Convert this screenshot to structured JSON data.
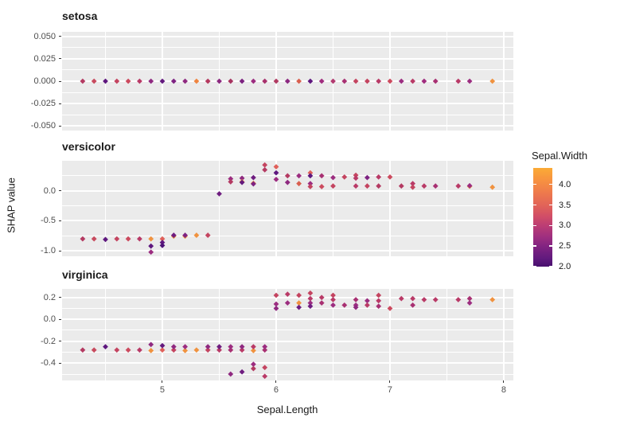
{
  "chart_data": {
    "type": "scatter",
    "title": "",
    "xlabel": "Sepal.Length",
    "ylabel": "SHAP value",
    "xlim": [
      4.119,
      8.084
    ],
    "x_major_ticks": [
      5,
      6,
      7,
      8
    ],
    "x_major_tick_labels": [
      "5",
      "6",
      "7",
      "8"
    ],
    "x_minor_ticks": [
      4.5,
      5.5,
      6.5,
      7.5
    ],
    "grid": true,
    "panel_background": "#ebebeb",
    "gridline_color": "#ffffff",
    "point_shape": "diamond",
    "legend": {
      "title": "Sepal.Width",
      "position": "right",
      "tick_labels": [
        "4.0",
        "3.5",
        "3.0",
        "2.5",
        "2.0"
      ],
      "tick_values": [
        4.0,
        3.5,
        3.0,
        2.5,
        2.0
      ],
      "range": [
        2.0,
        4.4
      ],
      "gradient_stops": [
        {
          "v": 4.4,
          "c": "#fbab35"
        },
        {
          "v": 4.1,
          "c": "#f79240"
        },
        {
          "v": 3.8,
          "c": "#ee7a4c"
        },
        {
          "v": 3.5,
          "c": "#e26458"
        },
        {
          "v": 3.2,
          "c": "#cf4c68"
        },
        {
          "v": 3.0,
          "c": "#bc3d74"
        },
        {
          "v": 2.7,
          "c": "#9c2e80"
        },
        {
          "v": 2.5,
          "c": "#822381"
        },
        {
          "v": 2.2,
          "c": "#611a7e"
        },
        {
          "v": 2.0,
          "c": "#47106e"
        }
      ]
    },
    "facets": [
      {
        "label": "setosa",
        "ylim": [
          -0.055,
          0.055
        ],
        "yticks": [
          {
            "label": "0.050",
            "v": 0.05
          },
          {
            "label": "0.025",
            "v": 0.025
          },
          {
            "label": "0.000",
            "v": 0.0
          },
          {
            "label": "-0.025",
            "v": -0.025
          },
          {
            "label": "-0.050",
            "v": -0.05
          }
        ],
        "y_minor": [
          0.0375,
          0.0125,
          -0.0125,
          -0.0375
        ],
        "points": [
          {
            "x": 4.3,
            "y": 0,
            "c": "#b43a62"
          },
          {
            "x": 4.4,
            "y": 0,
            "c": "#c84a5e"
          },
          {
            "x": 4.5,
            "y": 0,
            "c": "#5e177e"
          },
          {
            "x": 4.6,
            "y": 0,
            "c": "#c44460"
          },
          {
            "x": 4.7,
            "y": 0,
            "c": "#cc4a5e"
          },
          {
            "x": 4.8,
            "y": 0,
            "c": "#b93a67"
          },
          {
            "x": 4.9,
            "y": 0,
            "c": "#8f2980"
          },
          {
            "x": 5.0,
            "y": 0,
            "c": "#63197e"
          },
          {
            "x": 5.1,
            "y": 0,
            "c": "#7e2282"
          },
          {
            "x": 5.2,
            "y": 0,
            "c": "#8f2980"
          },
          {
            "x": 5.3,
            "y": 0,
            "c": "#ef8440"
          },
          {
            "x": 5.4,
            "y": 0,
            "c": "#b5395f"
          },
          {
            "x": 5.5,
            "y": 0,
            "c": "#8c2980"
          },
          {
            "x": 5.6,
            "y": 0,
            "c": "#a63360"
          },
          {
            "x": 5.7,
            "y": 0,
            "c": "#7c2280"
          },
          {
            "x": 5.8,
            "y": 0,
            "c": "#9c2c80"
          },
          {
            "x": 5.9,
            "y": 0,
            "c": "#a8306c"
          },
          {
            "x": 6.0,
            "y": 0,
            "c": "#b13a62"
          },
          {
            "x": 6.1,
            "y": 0,
            "c": "#8c2980"
          },
          {
            "x": 6.2,
            "y": 0,
            "c": "#d95f4f"
          },
          {
            "x": 6.3,
            "y": 0,
            "c": "#5e177e"
          },
          {
            "x": 6.4,
            "y": 0,
            "c": "#a02c7e"
          },
          {
            "x": 6.5,
            "y": 0,
            "c": "#b23a70"
          },
          {
            "x": 6.6,
            "y": 0,
            "c": "#a83072"
          },
          {
            "x": 6.7,
            "y": 0,
            "c": "#c44460"
          },
          {
            "x": 6.8,
            "y": 0,
            "c": "#c44460"
          },
          {
            "x": 6.9,
            "y": 0,
            "c": "#b93a67"
          },
          {
            "x": 7.0,
            "y": 0,
            "c": "#cc4a5e"
          },
          {
            "x": 7.1,
            "y": 0,
            "c": "#9c2d80"
          },
          {
            "x": 7.2,
            "y": 0,
            "c": "#b93a67"
          },
          {
            "x": 7.3,
            "y": 0,
            "c": "#a02c7e"
          },
          {
            "x": 7.4,
            "y": 0,
            "c": "#a83072"
          },
          {
            "x": 7.6,
            "y": 0,
            "c": "#b93a67"
          },
          {
            "x": 7.7,
            "y": 0,
            "c": "#9c2d80"
          },
          {
            "x": 7.9,
            "y": 0,
            "c": "#f0923f"
          }
        ]
      },
      {
        "label": "versicolor",
        "ylim": [
          -1.09,
          0.5
        ],
        "yticks": [
          {
            "label": "0.0",
            "v": 0.0
          },
          {
            "label": "-0.5",
            "v": -0.5
          },
          {
            "label": "-1.0",
            "v": -1.0
          }
        ],
        "y_minor": [
          0.25,
          -0.25,
          -0.75
        ],
        "points": [
          {
            "x": 4.3,
            "y": -0.8,
            "c": "#b43a62"
          },
          {
            "x": 4.4,
            "y": -0.8,
            "c": "#c84a5e"
          },
          {
            "x": 4.5,
            "y": -0.81,
            "c": "#5e177e"
          },
          {
            "x": 4.6,
            "y": -0.8,
            "c": "#c44460"
          },
          {
            "x": 4.7,
            "y": -0.8,
            "c": "#cc4a5e"
          },
          {
            "x": 4.8,
            "y": -0.8,
            "c": "#b93a67"
          },
          {
            "x": 4.9,
            "y": -0.8,
            "c": "#f0923f"
          },
          {
            "x": 4.9,
            "y": -0.92,
            "c": "#5e177e"
          },
          {
            "x": 4.9,
            "y": -1.02,
            "c": "#9c2d80"
          },
          {
            "x": 5.0,
            "y": -0.8,
            "c": "#e0605a"
          },
          {
            "x": 5.0,
            "y": -0.86,
            "c": "#5e177e"
          },
          {
            "x": 5.0,
            "y": -0.91,
            "c": "#4c1176"
          },
          {
            "x": 5.1,
            "y": -0.755,
            "c": "#f0923f"
          },
          {
            "x": 5.1,
            "y": -0.74,
            "c": "#6f1d80"
          },
          {
            "x": 5.2,
            "y": -0.755,
            "c": "#f0923f"
          },
          {
            "x": 5.2,
            "y": -0.74,
            "c": "#7e2282"
          },
          {
            "x": 5.3,
            "y": -0.74,
            "c": "#f0923f"
          },
          {
            "x": 5.4,
            "y": -0.74,
            "c": "#c44460"
          },
          {
            "x": 5.5,
            "y": -0.05,
            "c": "#6f1d80"
          },
          {
            "x": 5.6,
            "y": 0.2,
            "c": "#9c2d80"
          },
          {
            "x": 5.6,
            "y": 0.15,
            "c": "#b43a62"
          },
          {
            "x": 5.7,
            "y": 0.21,
            "c": "#8f2980"
          },
          {
            "x": 5.7,
            "y": 0.15,
            "c": "#f0923f"
          },
          {
            "x": 5.7,
            "y": 0.14,
            "c": "#63197e"
          },
          {
            "x": 5.8,
            "y": 0.22,
            "c": "#6f1d80"
          },
          {
            "x": 5.8,
            "y": 0.125,
            "c": "#f0923f"
          },
          {
            "x": 5.8,
            "y": 0.115,
            "c": "#7e2282"
          },
          {
            "x": 5.9,
            "y": 0.43,
            "c": "#c44460"
          },
          {
            "x": 5.9,
            "y": 0.35,
            "c": "#b43a62"
          },
          {
            "x": 6.0,
            "y": 0.4,
            "c": "#e0605a"
          },
          {
            "x": 6.0,
            "y": 0.3,
            "c": "#5e177e"
          },
          {
            "x": 6.0,
            "y": 0.19,
            "c": "#9c2d80"
          },
          {
            "x": 6.1,
            "y": 0.25,
            "c": "#b43a62"
          },
          {
            "x": 6.1,
            "y": 0.14,
            "c": "#8f2980"
          },
          {
            "x": 6.2,
            "y": 0.25,
            "c": "#9c2d80"
          },
          {
            "x": 6.2,
            "y": 0.12,
            "c": "#d95f4f"
          },
          {
            "x": 6.3,
            "y": 0.3,
            "c": "#e0605a"
          },
          {
            "x": 6.3,
            "y": 0.25,
            "c": "#5e177e"
          },
          {
            "x": 6.3,
            "y": 0.12,
            "c": "#9c2d80"
          },
          {
            "x": 6.3,
            "y": 0.07,
            "c": "#c44460"
          },
          {
            "x": 6.4,
            "y": 0.25,
            "c": "#a83072"
          },
          {
            "x": 6.4,
            "y": 0.07,
            "c": "#cc4a5e"
          },
          {
            "x": 6.5,
            "y": 0.22,
            "c": "#9c2d80"
          },
          {
            "x": 6.5,
            "y": 0.08,
            "c": "#c44460"
          },
          {
            "x": 6.6,
            "y": 0.23,
            "c": "#c44460"
          },
          {
            "x": 6.7,
            "y": 0.26,
            "c": "#c44460"
          },
          {
            "x": 6.7,
            "y": 0.21,
            "c": "#b93a67"
          },
          {
            "x": 6.7,
            "y": 0.08,
            "c": "#b93a67"
          },
          {
            "x": 6.8,
            "y": 0.22,
            "c": "#7e2282"
          },
          {
            "x": 6.8,
            "y": 0.08,
            "c": "#c44460"
          },
          {
            "x": 6.9,
            "y": 0.23,
            "c": "#b93a67"
          },
          {
            "x": 6.9,
            "y": 0.08,
            "c": "#b43a62"
          },
          {
            "x": 7.0,
            "y": 0.23,
            "c": "#cc4a5e"
          },
          {
            "x": 7.1,
            "y": 0.08,
            "c": "#b43a62"
          },
          {
            "x": 7.2,
            "y": 0.12,
            "c": "#b93a67"
          },
          {
            "x": 7.2,
            "y": 0.06,
            "c": "#c44460"
          },
          {
            "x": 7.3,
            "y": 0.08,
            "c": "#b93a67"
          },
          {
            "x": 7.4,
            "y": 0.08,
            "c": "#a83072"
          },
          {
            "x": 7.6,
            "y": 0.08,
            "c": "#b93a67"
          },
          {
            "x": 7.7,
            "y": 0.075,
            "c": "#f0923f"
          },
          {
            "x": 7.7,
            "y": 0.085,
            "c": "#9c2d80"
          },
          {
            "x": 7.9,
            "y": 0.06,
            "c": "#f0923f"
          }
        ]
      },
      {
        "label": "virginica",
        "ylim": [
          -0.558,
          0.278
        ],
        "yticks": [
          {
            "label": "0.2",
            "v": 0.2
          },
          {
            "label": "0.0",
            "v": 0.0
          },
          {
            "label": "-0.2",
            "v": -0.2
          },
          {
            "label": "-0.4",
            "v": -0.4
          }
        ],
        "y_minor": [
          0.1,
          -0.1,
          -0.3,
          -0.5
        ],
        "points": [
          {
            "x": 4.3,
            "y": -0.28,
            "c": "#b43a62"
          },
          {
            "x": 4.4,
            "y": -0.28,
            "c": "#c84a5e"
          },
          {
            "x": 4.5,
            "y": -0.25,
            "c": "#5e177e"
          },
          {
            "x": 4.6,
            "y": -0.28,
            "c": "#c44460"
          },
          {
            "x": 4.7,
            "y": -0.28,
            "c": "#cc4a5e"
          },
          {
            "x": 4.8,
            "y": -0.28,
            "c": "#b93a67"
          },
          {
            "x": 4.9,
            "y": -0.285,
            "c": "#f0923f"
          },
          {
            "x": 4.9,
            "y": -0.23,
            "c": "#8f2980"
          },
          {
            "x": 5.0,
            "y": -0.28,
            "c": "#e0605a"
          },
          {
            "x": 5.0,
            "y": -0.24,
            "c": "#63197e"
          },
          {
            "x": 5.1,
            "y": -0.28,
            "c": "#c44460"
          },
          {
            "x": 5.1,
            "y": -0.25,
            "c": "#8f2980"
          },
          {
            "x": 5.2,
            "y": -0.285,
            "c": "#f0923f"
          },
          {
            "x": 5.2,
            "y": -0.25,
            "c": "#9c2d80"
          },
          {
            "x": 5.3,
            "y": -0.28,
            "c": "#f0923f"
          },
          {
            "x": 5.4,
            "y": -0.28,
            "c": "#c44460"
          },
          {
            "x": 5.4,
            "y": -0.25,
            "c": "#8f2980"
          },
          {
            "x": 5.5,
            "y": -0.28,
            "c": "#b93a67"
          },
          {
            "x": 5.5,
            "y": -0.25,
            "c": "#6f1d80"
          },
          {
            "x": 5.6,
            "y": -0.28,
            "c": "#a83072"
          },
          {
            "x": 5.6,
            "y": -0.25,
            "c": "#9c2d80"
          },
          {
            "x": 5.6,
            "y": -0.5,
            "c": "#8f2980"
          },
          {
            "x": 5.7,
            "y": -0.28,
            "c": "#b93a67"
          },
          {
            "x": 5.7,
            "y": -0.25,
            "c": "#8f2980"
          },
          {
            "x": 5.7,
            "y": -0.48,
            "c": "#6f1d80"
          },
          {
            "x": 5.8,
            "y": -0.285,
            "c": "#f0923f"
          },
          {
            "x": 5.8,
            "y": -0.25,
            "c": "#b93a67"
          },
          {
            "x": 5.8,
            "y": -0.41,
            "c": "#9c2d80"
          },
          {
            "x": 5.8,
            "y": -0.45,
            "c": "#b43a62"
          },
          {
            "x": 5.9,
            "y": -0.28,
            "c": "#a83072"
          },
          {
            "x": 5.9,
            "y": -0.25,
            "c": "#9c2d80"
          },
          {
            "x": 5.9,
            "y": -0.44,
            "c": "#c44460"
          },
          {
            "x": 5.9,
            "y": -0.52,
            "c": "#b93a67"
          },
          {
            "x": 6.0,
            "y": 0.22,
            "c": "#c44460"
          },
          {
            "x": 6.0,
            "y": 0.14,
            "c": "#9c2d80"
          },
          {
            "x": 6.0,
            "y": 0.1,
            "c": "#8f2980"
          },
          {
            "x": 6.1,
            "y": 0.23,
            "c": "#b93a67"
          },
          {
            "x": 6.1,
            "y": 0.15,
            "c": "#9c2d80"
          },
          {
            "x": 6.2,
            "y": 0.22,
            "c": "#c44460"
          },
          {
            "x": 6.2,
            "y": 0.15,
            "c": "#f0923f"
          },
          {
            "x": 6.2,
            "y": 0.11,
            "c": "#6f1d80"
          },
          {
            "x": 6.3,
            "y": 0.24,
            "c": "#c44460"
          },
          {
            "x": 6.3,
            "y": 0.19,
            "c": "#b93a67"
          },
          {
            "x": 6.3,
            "y": 0.15,
            "c": "#9c2d80"
          },
          {
            "x": 6.3,
            "y": 0.12,
            "c": "#6f1d80"
          },
          {
            "x": 6.4,
            "y": 0.2,
            "c": "#b93a67"
          },
          {
            "x": 6.4,
            "y": 0.15,
            "c": "#a83072"
          },
          {
            "x": 6.5,
            "y": 0.22,
            "c": "#c44460"
          },
          {
            "x": 6.5,
            "y": 0.18,
            "c": "#b93a67"
          },
          {
            "x": 6.5,
            "y": 0.13,
            "c": "#9c2d80"
          },
          {
            "x": 6.6,
            "y": 0.13,
            "c": "#a83072"
          },
          {
            "x": 6.7,
            "y": 0.18,
            "c": "#a83072"
          },
          {
            "x": 6.7,
            "y": 0.13,
            "c": "#9c2d80"
          },
          {
            "x": 6.7,
            "y": 0.11,
            "c": "#8f2980"
          },
          {
            "x": 6.8,
            "y": 0.17,
            "c": "#9c2d80"
          },
          {
            "x": 6.8,
            "y": 0.13,
            "c": "#b93a67"
          },
          {
            "x": 6.9,
            "y": 0.22,
            "c": "#c44460"
          },
          {
            "x": 6.9,
            "y": 0.17,
            "c": "#b93a67"
          },
          {
            "x": 6.9,
            "y": 0.12,
            "c": "#a83072"
          },
          {
            "x": 7.0,
            "y": 0.1,
            "c": "#cc4a5e"
          },
          {
            "x": 7.1,
            "y": 0.19,
            "c": "#b93a67"
          },
          {
            "x": 7.2,
            "y": 0.19,
            "c": "#b93a67"
          },
          {
            "x": 7.2,
            "y": 0.13,
            "c": "#a83072"
          },
          {
            "x": 7.3,
            "y": 0.18,
            "c": "#b93a67"
          },
          {
            "x": 7.4,
            "y": 0.18,
            "c": "#b93a67"
          },
          {
            "x": 7.6,
            "y": 0.18,
            "c": "#b93a67"
          },
          {
            "x": 7.7,
            "y": 0.19,
            "c": "#a83072"
          },
          {
            "x": 7.7,
            "y": 0.15,
            "c": "#9c2d80"
          },
          {
            "x": 7.9,
            "y": 0.18,
            "c": "#f0923f"
          }
        ]
      }
    ]
  }
}
